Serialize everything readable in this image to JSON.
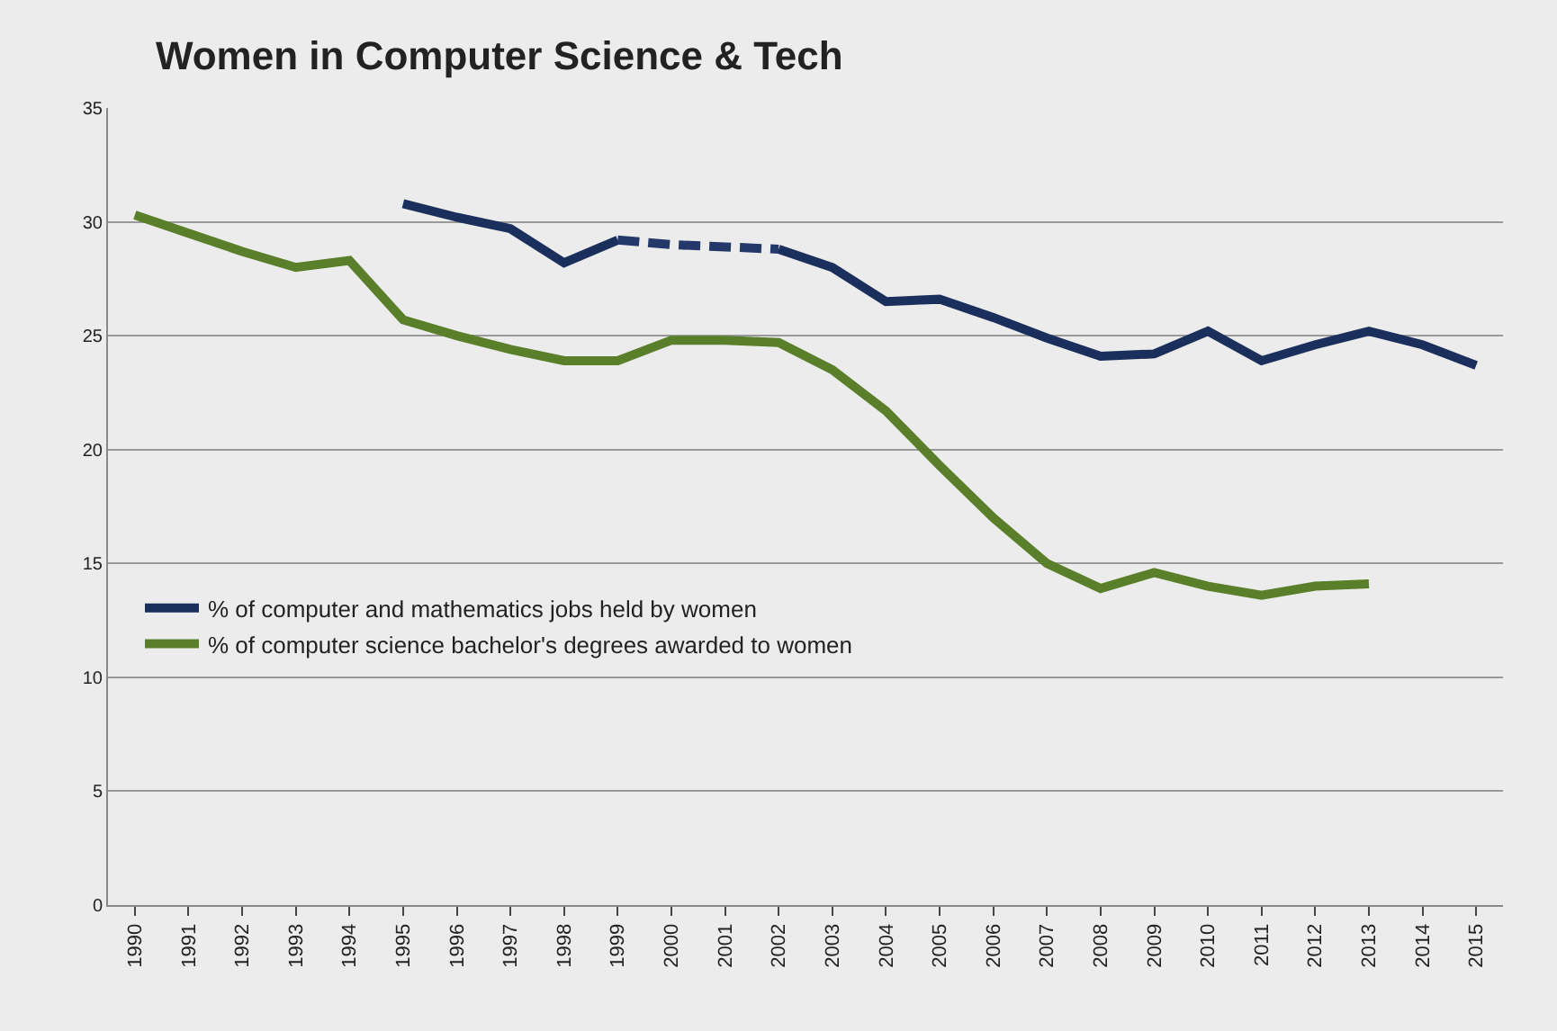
{
  "chart_data": {
    "type": "line",
    "title": "Women in Computer Science & Tech",
    "categories": [
      "1990",
      "1991",
      "1992",
      "1993",
      "1994",
      "1995",
      "1996",
      "1997",
      "1998",
      "1999",
      "2000",
      "2001",
      "2002",
      "2003",
      "2004",
      "2005",
      "2006",
      "2007",
      "2008",
      "2009",
      "2010",
      "2011",
      "2012",
      "2013",
      "2014",
      "2015"
    ],
    "series": [
      {
        "name": "% of computer and mathematics jobs held by women",
        "color": "#1b2f5c",
        "values": [
          null,
          null,
          null,
          null,
          null,
          30.8,
          30.2,
          29.7,
          28.2,
          29.2,
          null,
          null,
          28.8,
          28.0,
          26.5,
          26.6,
          25.8,
          24.9,
          24.1,
          24.2,
          25.2,
          23.9,
          24.6,
          25.2,
          24.6,
          23.7
        ]
      },
      {
        "name": "% of computer science bachelor's degrees awarded to women",
        "color": "#5a7f2a",
        "values": [
          30.3,
          29.5,
          28.7,
          28.0,
          28.3,
          25.7,
          25.0,
          24.4,
          23.9,
          23.9,
          24.8,
          24.8,
          24.7,
          23.5,
          21.7,
          19.3,
          17.0,
          15.0,
          13.9,
          14.6,
          14.0,
          13.6,
          14.0,
          14.1,
          null,
          null
        ]
      },
      {
        "color": "#24386a",
        "line_style": "dashed",
        "values": [
          null,
          null,
          null,
          null,
          null,
          null,
          null,
          null,
          null,
          29.2,
          29.0,
          28.9,
          28.8,
          null,
          null,
          null,
          null,
          null,
          null,
          null,
          null,
          null,
          null,
          null,
          null,
          null
        ]
      }
    ],
    "ylim": [
      0,
      35
    ],
    "yticks": [
      0,
      5,
      10,
      15,
      20,
      25,
      30,
      35
    ],
    "grid": "y",
    "legend": "left",
    "line_style": "solid"
  }
}
